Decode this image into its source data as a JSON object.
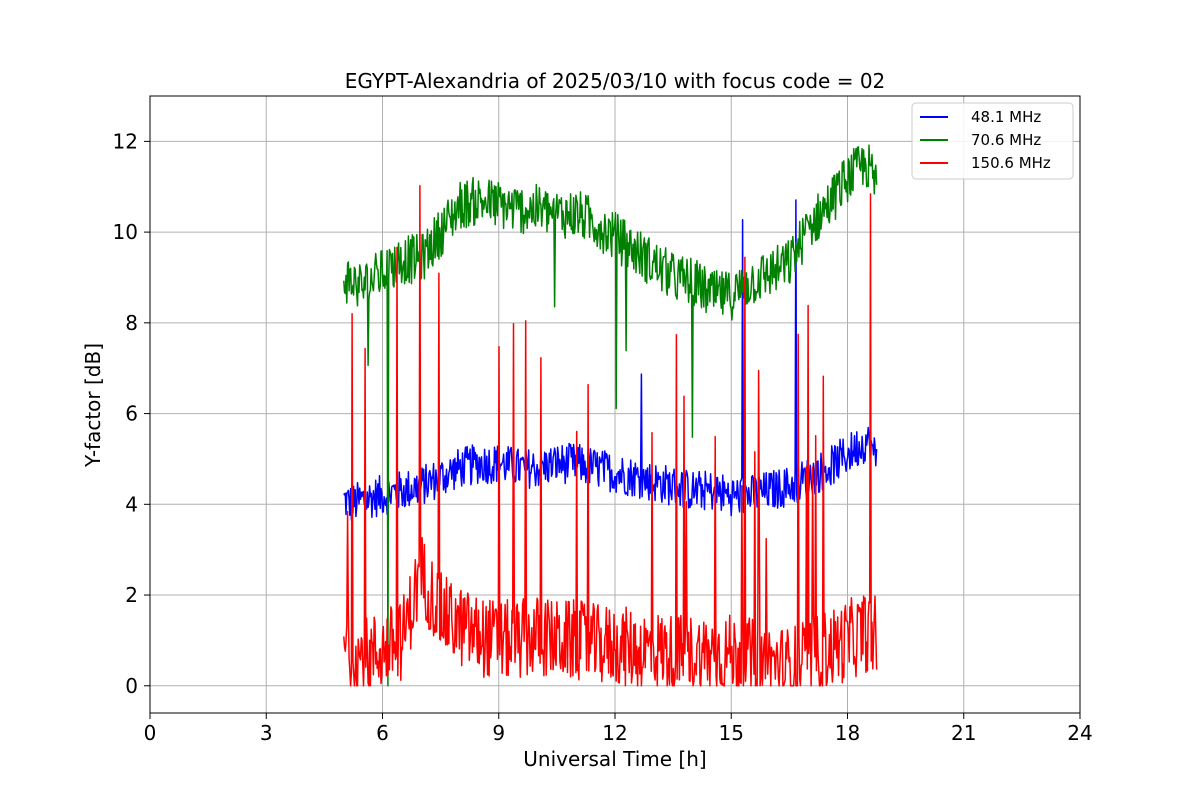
{
  "chart_data": {
    "type": "line",
    "title": "EGYPT-Alexandria of 2025/03/10 with focus code = 02",
    "xlabel": "Universal Time [h]",
    "ylabel": "Y-factor [dB]",
    "xlim": [
      0,
      24
    ],
    "ylim": [
      -0.6,
      13.0
    ],
    "xticks": [
      "0",
      "3",
      "6",
      "9",
      "12",
      "15",
      "18",
      "21",
      "24"
    ],
    "yticks": [
      "0",
      "2",
      "4",
      "6",
      "8",
      "10",
      "12"
    ],
    "grid": true,
    "legend_position": "top-right",
    "series": [
      {
        "name": "48.1 MHz",
        "color": "#0000ff",
        "x": [
          5.0,
          5.2,
          5.5,
          6.0,
          6.5,
          7.0,
          7.5,
          8.0,
          8.5,
          9.0,
          9.5,
          10.0,
          10.5,
          11.0,
          11.5,
          12.0,
          12.5,
          13.0,
          13.5,
          14.0,
          14.5,
          15.0,
          15.5,
          16.0,
          16.5,
          17.0,
          17.5,
          18.0,
          18.5,
          18.75
        ],
        "y": [
          4.1,
          4.0,
          4.1,
          4.2,
          4.3,
          4.4,
          4.6,
          4.8,
          4.9,
          4.9,
          4.8,
          4.8,
          4.9,
          4.9,
          4.8,
          4.7,
          4.6,
          4.5,
          4.4,
          4.3,
          4.3,
          4.2,
          4.2,
          4.3,
          4.4,
          4.6,
          4.8,
          5.1,
          5.4,
          5.0
        ]
      },
      {
        "name": "70.6 MHz",
        "color": "#008000",
        "x": [
          5.0,
          5.2,
          5.5,
          6.0,
          6.5,
          7.0,
          7.5,
          8.0,
          8.5,
          9.0,
          9.5,
          10.0,
          10.5,
          11.0,
          11.5,
          12.0,
          12.5,
          13.0,
          13.5,
          14.0,
          14.5,
          15.0,
          15.5,
          16.0,
          16.5,
          17.0,
          17.5,
          18.0,
          18.5,
          18.75
        ],
        "y": [
          9.0,
          8.9,
          8.8,
          9.1,
          9.4,
          9.4,
          10.0,
          10.6,
          10.7,
          10.6,
          10.5,
          10.5,
          10.4,
          10.4,
          10.2,
          9.9,
          9.6,
          9.3,
          9.0,
          8.9,
          8.6,
          8.6,
          8.9,
          9.1,
          9.3,
          10.1,
          10.6,
          11.2,
          11.5,
          11.0
        ]
      },
      {
        "name": "150.6 MHz",
        "color": "#ff0000",
        "x": [
          5.0,
          5.2,
          5.5,
          6.0,
          6.5,
          7.0,
          7.5,
          8.0,
          8.5,
          9.0,
          9.5,
          10.0,
          10.5,
          11.0,
          11.5,
          12.0,
          12.5,
          13.0,
          13.5,
          14.0,
          14.5,
          15.0,
          15.5,
          16.0,
          16.5,
          17.0,
          17.5,
          18.0,
          18.5,
          18.75
        ],
        "y": [
          0.9,
          0.7,
          0.6,
          0.8,
          1.0,
          2.5,
          1.6,
          1.3,
          1.1,
          1.0,
          1.0,
          1.1,
          1.0,
          1.0,
          0.9,
          0.9,
          0.8,
          0.8,
          0.7,
          0.7,
          0.7,
          0.7,
          0.6,
          0.5,
          0.4,
          0.6,
          0.8,
          1.0,
          1.2,
          1.1
        ]
      }
    ]
  }
}
